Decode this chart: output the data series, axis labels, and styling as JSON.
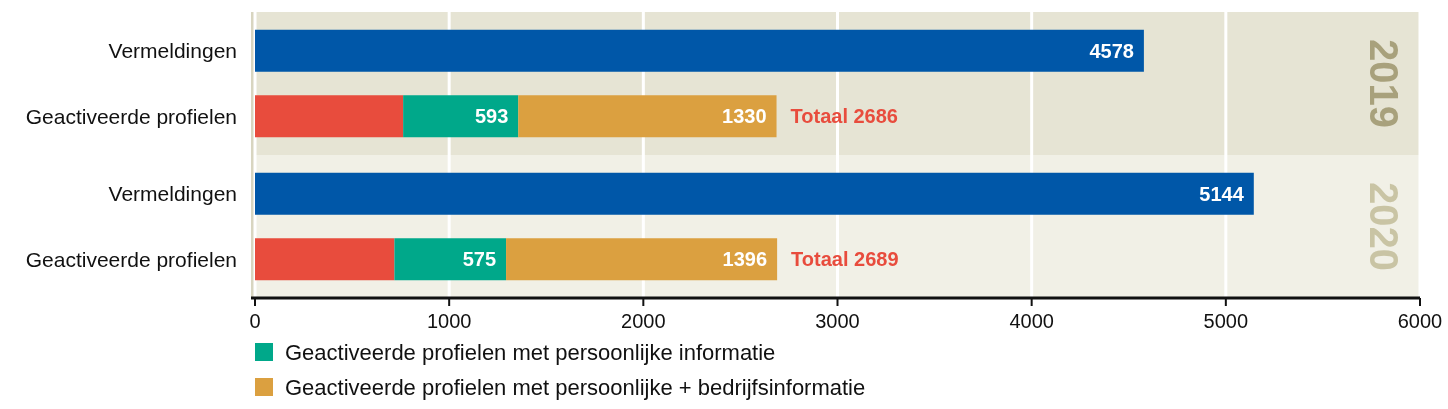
{
  "chart_data": {
    "type": "bar",
    "orientation": "horizontal",
    "stacked": true,
    "categories": [
      "Vermeldingen",
      "Geactiveerde profielen",
      "Vermeldingen",
      "Geactiveerde profielen"
    ],
    "series": [
      {
        "color": "#0057a8",
        "values": [
          4578,
          null,
          5144,
          null
        ],
        "value_labels": [
          "4578",
          null,
          "5144",
          null
        ]
      },
      {
        "color": "#e84c3d",
        "values": [
          null,
          763,
          null,
          718
        ],
        "value_labels": [
          null,
          null,
          null,
          null
        ]
      },
      {
        "name": "Geactiveerde profielen met persoonlijke informatie",
        "color": "#00a88a",
        "values": [
          null,
          593,
          null,
          575
        ],
        "value_labels": [
          null,
          "593",
          null,
          "575"
        ]
      },
      {
        "name": "Geactiveerde profielen met persoonlijke + bedrijfsinformatie",
        "color": "#dba040",
        "values": [
          null,
          1330,
          null,
          1396
        ],
        "value_labels": [
          null,
          "1330",
          null,
          "1396"
        ]
      }
    ],
    "totals": [
      null,
      "Totaal 2686",
      null,
      "Totaal 2689"
    ],
    "bands": [
      {
        "axis": "y",
        "from": "Vermeldingen",
        "to": "Geactiveerde profielen",
        "label": "2019",
        "color": "#e6e4d4"
      }
    ],
    "annotations": [
      "2020"
    ],
    "xlim": [
      0,
      6000
    ],
    "xticks": [
      0,
      1000,
      2000,
      3000,
      4000,
      5000,
      6000
    ],
    "grid": "x",
    "legend": "bottom left"
  }
}
